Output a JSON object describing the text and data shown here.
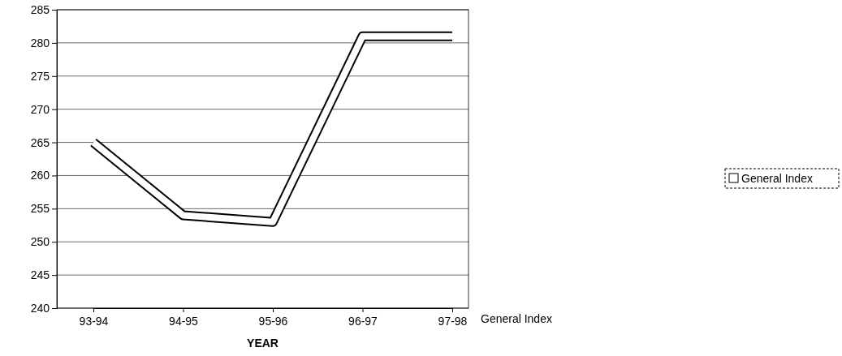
{
  "chart_data": {
    "type": "line",
    "xlabel": "YEAR",
    "categories": [
      "93-94",
      "94-95",
      "95-96",
      "96-97",
      "97-98"
    ],
    "series": [
      {
        "name": "General Index",
        "color": "#ffffff",
        "values": [
          265,
          254,
          253,
          281,
          281
        ]
      }
    ],
    "ylim": [
      240,
      285
    ],
    "yticks": [
      240,
      245,
      250,
      255,
      260,
      265,
      270,
      275,
      280,
      285
    ],
    "grid": "y",
    "legend": "right",
    "marker": "none",
    "annotations": [
      "General Index"
    ]
  }
}
